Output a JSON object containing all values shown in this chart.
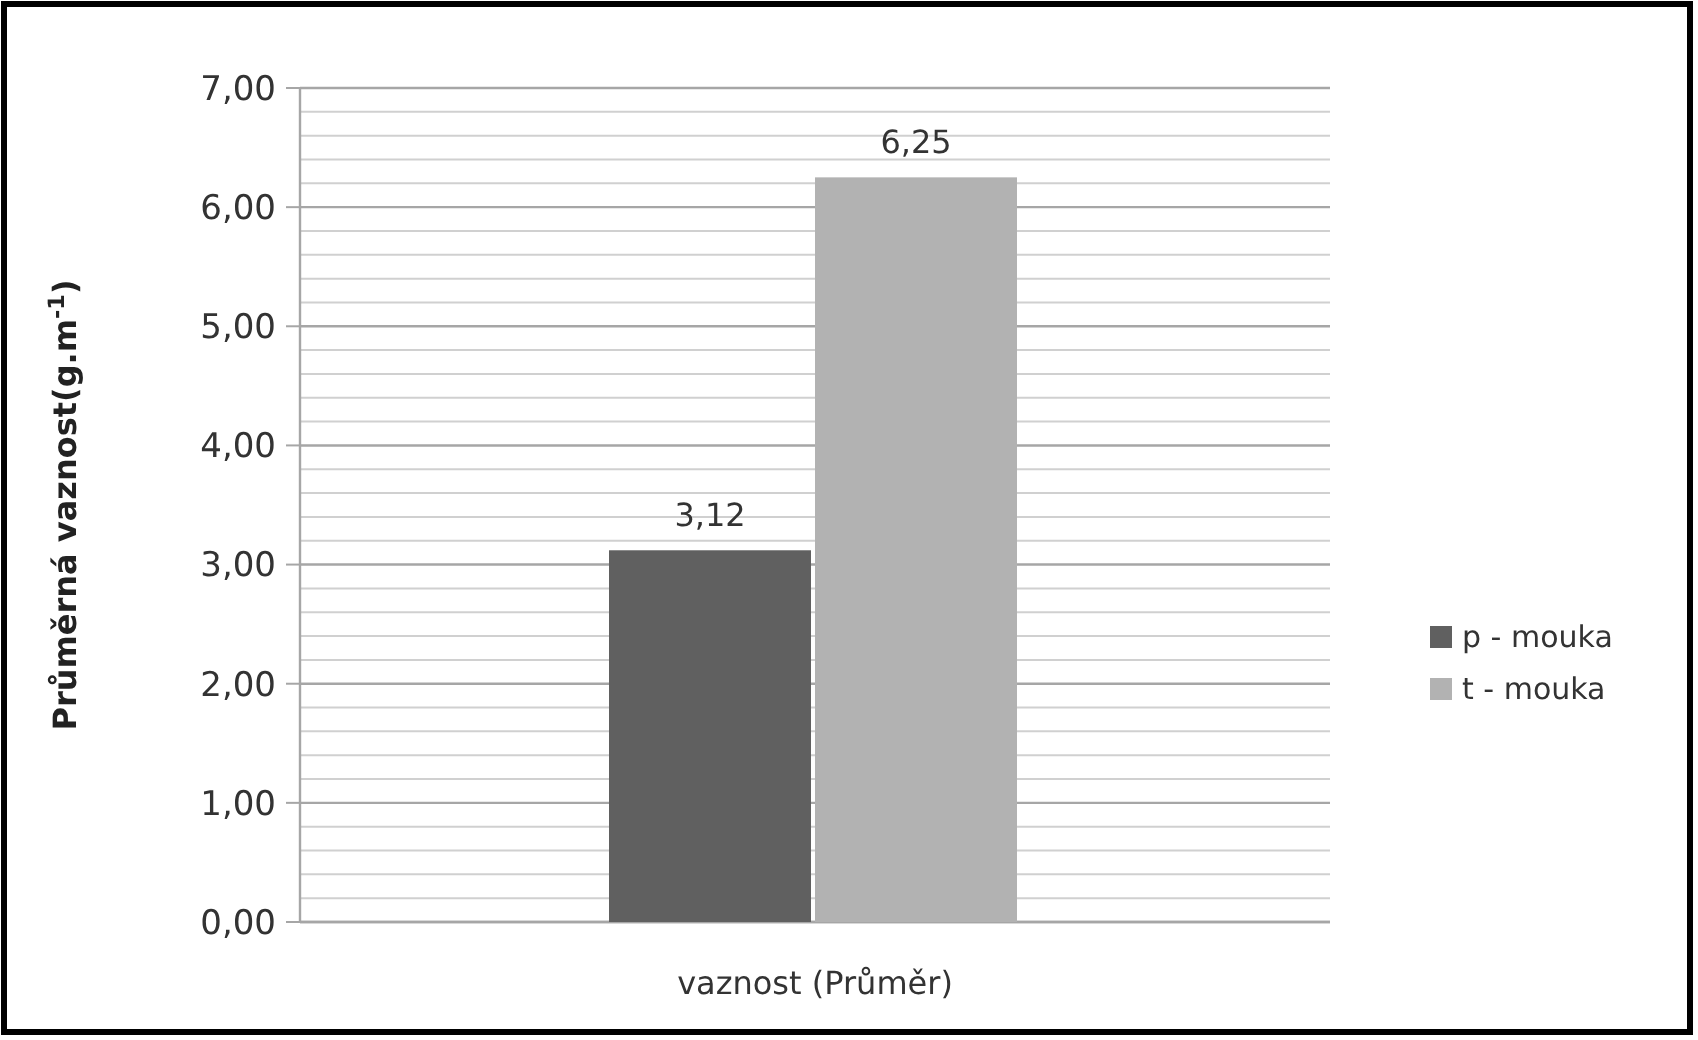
{
  "chart_data": {
    "type": "bar",
    "ylabel": "Průměrná vaznost(g.m$^{-1}$)",
    "categories": [
      "vaznost (Průměr)"
    ],
    "series": [
      {
        "name": "p - mouka",
        "color": "#606060",
        "values": [
          3.12
        ],
        "value_labels": [
          "3,12"
        ]
      },
      {
        "name": "t - mouka",
        "color": "#b2b2b2",
        "values": [
          6.25
        ],
        "value_labels": [
          "6,25"
        ]
      }
    ],
    "ylim": [
      0,
      7
    ],
    "yticks": [
      {
        "value": 0,
        "label": "0,00"
      },
      {
        "value": 1,
        "label": "1,00"
      },
      {
        "value": 2,
        "label": "2,00"
      },
      {
        "value": 3,
        "label": "3,00"
      },
      {
        "value": 4,
        "label": "4,00"
      },
      {
        "value": 5,
        "label": "5,00"
      },
      {
        "value": 6,
        "label": "6,00"
      },
      {
        "value": 7,
        "label": "7,00"
      }
    ],
    "grid": true,
    "legend": "right"
  }
}
